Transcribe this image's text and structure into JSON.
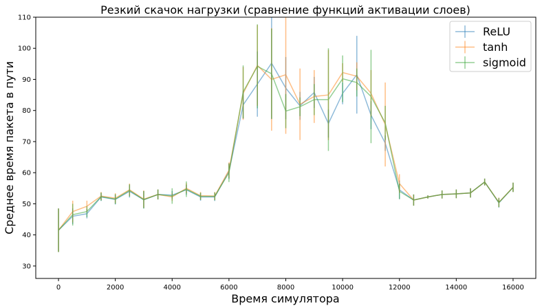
{
  "chart_data": {
    "type": "line",
    "title": "Резкий скачок нагрузки (сравнение функций активации слоев)",
    "xlabel": "Время симулятора",
    "ylabel": "Среднее время пакета в пути",
    "xlim": [
      -800,
      16800
    ],
    "ylim": [
      26,
      110
    ],
    "xticks": [
      0,
      2000,
      4000,
      6000,
      8000,
      10000,
      12000,
      14000,
      16000
    ],
    "yticks": [
      30,
      40,
      50,
      60,
      70,
      80,
      90,
      100,
      110
    ],
    "grid": false,
    "legend_position": "top-right",
    "error_bars": true,
    "x": [
      0,
      500,
      1000,
      1500,
      2000,
      2500,
      3000,
      3500,
      4000,
      4500,
      5000,
      5500,
      6000,
      6500,
      7000,
      7500,
      8000,
      8500,
      9000,
      9500,
      10000,
      10500,
      11000,
      11500,
      12000,
      12500,
      13000,
      13500,
      14000,
      14500,
      15000,
      15500,
      16000
    ],
    "series": [
      {
        "name": "ReLU",
        "color": "#1f77b4",
        "values": [
          41.5,
          46,
          46.8,
          52.2,
          51.4,
          54,
          51.3,
          53,
          52.8,
          54.5,
          52.2,
          52.2,
          60.5,
          81.8,
          88.5,
          95.2,
          87.2,
          81.5,
          85.8,
          75.8,
          85.5,
          91.5,
          78.5,
          69.5,
          54.5,
          51.2,
          52.2,
          53,
          53.2,
          53.5,
          57,
          50.3,
          55.3
        ],
        "errors": [
          7,
          2.5,
          1.5,
          1.3,
          1.6,
          2,
          2.8,
          1.6,
          1.3,
          1.6,
          1.2,
          1.3,
          2.5,
          4.5,
          10.5,
          18,
          10,
          4.5,
          5,
          4.5,
          3.5,
          12.5,
          4.5,
          2.5,
          3,
          1.8,
          0.5,
          1.3,
          1.4,
          1.5,
          1.1,
          1.5,
          1.5
        ]
      },
      {
        "name": "tanh",
        "color": "#ff7f0e",
        "values": [
          41.5,
          47.5,
          49.2,
          52.5,
          51.8,
          54.5,
          51.5,
          53,
          52.2,
          55,
          52.6,
          52.5,
          60.8,
          85.5,
          94.5,
          90,
          91.5,
          82,
          84.5,
          85,
          92.2,
          91,
          85.5,
          75.5,
          56.5,
          51.2,
          52.2,
          53,
          53.2,
          53.5,
          57,
          50.5,
          55.3
        ],
        "errors": [
          7,
          3.5,
          1.8,
          1.3,
          1.6,
          2,
          2.8,
          1.6,
          1.3,
          1.6,
          1.2,
          1.3,
          2.5,
          8.5,
          13,
          16.5,
          19,
          11.5,
          8.5,
          14.5,
          3,
          4.5,
          7.5,
          13.5,
          3,
          1.8,
          0.5,
          1.3,
          1.4,
          1.5,
          1.1,
          1.5,
          1.5
        ]
      },
      {
        "name": "sigmoid",
        "color": "#2ca02c",
        "values": [
          41.5,
          46.5,
          47.5,
          52.3,
          51.5,
          54.3,
          51.3,
          53,
          52.5,
          54.7,
          52.4,
          52.4,
          60,
          86,
          94.2,
          91.8,
          79.8,
          81.2,
          83.5,
          83.5,
          90.2,
          89,
          84.5,
          76,
          54,
          51.2,
          52.2,
          53,
          53.2,
          53.5,
          57,
          50.4,
          55.3
        ],
        "errors": [
          7,
          3.5,
          1.8,
          1.3,
          1.6,
          2,
          2.8,
          1.6,
          2.5,
          2.5,
          1.2,
          1.3,
          3,
          8.5,
          13.5,
          14.5,
          5.5,
          3,
          5,
          16.5,
          7.5,
          4.5,
          15,
          5.5,
          2.5,
          1.8,
          0.5,
          1.3,
          1.4,
          1.5,
          1.1,
          1.5,
          1.5
        ]
      }
    ]
  }
}
